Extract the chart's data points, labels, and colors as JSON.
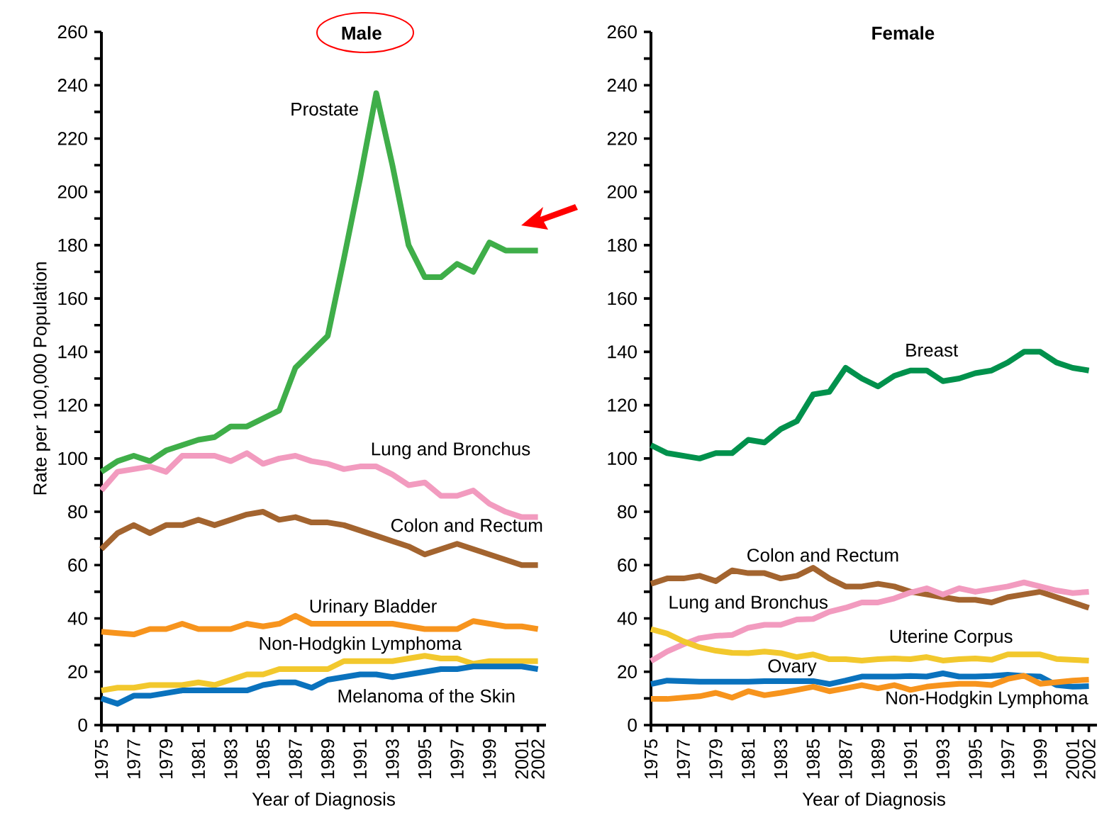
{
  "chart_data": [
    {
      "type": "line",
      "title": "Male",
      "xlabel": "Year of Diagnosis",
      "ylabel": "Rate per 100,000 Population",
      "x": [
        1975,
        1976,
        1977,
        1978,
        1979,
        1980,
        1981,
        1982,
        1983,
        1984,
        1985,
        1986,
        1987,
        1988,
        1989,
        1990,
        1991,
        1992,
        1993,
        1994,
        1995,
        1996,
        1997,
        1998,
        1999,
        2000,
        2001,
        2002
      ],
      "xlim": [
        1975,
        2002.5
      ],
      "xticks": [
        1975,
        {
          "value": 1976,
          "label": null
        },
        1977,
        {
          "value": 1978,
          "label": null
        },
        1979,
        {
          "value": 1980,
          "label": null
        },
        1981,
        {
          "value": 1982,
          "label": null
        },
        1983,
        {
          "value": 1984,
          "label": null
        },
        1985,
        {
          "value": 1986,
          "label": null
        },
        1987,
        {
          "value": 1988,
          "label": null
        },
        1989,
        {
          "value": 1990,
          "label": null
        },
        1991,
        {
          "value": 1992,
          "label": null
        },
        1993,
        {
          "value": 1994,
          "label": null
        },
        1995,
        {
          "value": 1996,
          "label": null
        },
        1997,
        {
          "value": 1998,
          "label": null
        },
        1999,
        {
          "value": 2000,
          "label": null
        },
        2001,
        2002
      ],
      "ylim": [
        0,
        260
      ],
      "yticks": [
        0,
        {
          "value": 10,
          "label": null
        },
        20,
        {
          "value": 30,
          "label": null
        },
        40,
        {
          "value": 50,
          "label": null
        },
        60,
        {
          "value": 70,
          "label": null
        },
        80,
        {
          "value": 90,
          "label": null
        },
        100,
        {
          "value": 110,
          "label": null
        },
        120,
        {
          "value": 130,
          "label": null
        },
        140,
        {
          "value": 150,
          "label": null
        },
        160,
        {
          "value": 170,
          "label": null
        },
        180,
        {
          "value": 190,
          "label": null
        },
        200,
        {
          "value": 210,
          "label": null
        },
        220,
        {
          "value": 230,
          "label": null
        },
        240,
        {
          "value": 250,
          "label": null
        },
        260
      ],
      "series": [
        {
          "name": "Prostate",
          "color": "#3fae49",
          "values": [
            95,
            99,
            101,
            99,
            103,
            105,
            107,
            108,
            112,
            112,
            115,
            118,
            134,
            140,
            146,
            175,
            205,
            237,
            210,
            180,
            168,
            168,
            173,
            170,
            181,
            178,
            178,
            178
          ]
        },
        {
          "name": "Lung and Bronchus",
          "color": "#f29bbf",
          "values": [
            88,
            95,
            96,
            97,
            95,
            101,
            101,
            101,
            99,
            102,
            98,
            100,
            101,
            99,
            98,
            96,
            97,
            97,
            94,
            90,
            91,
            86,
            86,
            88,
            83,
            80,
            78,
            78
          ]
        },
        {
          "name": "Colon and Rectum",
          "color": "#a3642f",
          "values": [
            66,
            72,
            75,
            72,
            75,
            75,
            77,
            75,
            77,
            79,
            80,
            77,
            78,
            76,
            76,
            75,
            73,
            71,
            69,
            67,
            64,
            66,
            68,
            66,
            64,
            62,
            60,
            60
          ]
        },
        {
          "name": "Urinary Bladder",
          "color": "#f7941d",
          "values": [
            35,
            34.5,
            34,
            36,
            36,
            38,
            36,
            36,
            36,
            38,
            37,
            38,
            41,
            38,
            38,
            38,
            38,
            38,
            38,
            37,
            36,
            36,
            36,
            39,
            38,
            37,
            37,
            36
          ]
        },
        {
          "name": "Non-Hodgkin Lymphoma",
          "color": "#f2c82d",
          "values": [
            13,
            14,
            14,
            15,
            15,
            15,
            16,
            15,
            17,
            19,
            19,
            21,
            21,
            21,
            21,
            24,
            24,
            24,
            24,
            25,
            26,
            25,
            25,
            23,
            24,
            24,
            24,
            24
          ]
        },
        {
          "name": "Melanoma of the Skin",
          "color": "#0a72bd",
          "values": [
            10,
            8,
            11,
            11,
            12,
            13,
            13,
            13,
            13,
            13,
            15,
            16,
            16,
            14,
            17,
            18,
            19,
            19,
            18,
            19,
            20,
            21,
            21,
            22,
            22,
            22,
            22,
            21
          ]
        }
      ]
    },
    {
      "type": "line",
      "title": "Female",
      "xlabel": "Year of Diagnosis",
      "x": [
        1975,
        1976,
        1977,
        1978,
        1979,
        1980,
        1981,
        1982,
        1983,
        1984,
        1985,
        1986,
        1987,
        1988,
        1989,
        1990,
        1991,
        1992,
        1993,
        1994,
        1995,
        1996,
        1997,
        1998,
        1999,
        2000,
        2001,
        2002
      ],
      "xlim": [
        1975,
        2002.5
      ],
      "xticks": [
        1975,
        {
          "value": 1976,
          "label": null
        },
        1977,
        {
          "value": 1978,
          "label": null
        },
        1979,
        {
          "value": 1980,
          "label": null
        },
        1981,
        {
          "value": 1982,
          "label": null
        },
        1983,
        {
          "value": 1984,
          "label": null
        },
        1985,
        {
          "value": 1986,
          "label": null
        },
        1987,
        {
          "value": 1988,
          "label": null
        },
        1989,
        {
          "value": 1990,
          "label": null
        },
        1991,
        {
          "value": 1992,
          "label": null
        },
        1993,
        {
          "value": 1994,
          "label": null
        },
        1995,
        {
          "value": 1996,
          "label": null
        },
        1997,
        {
          "value": 1998,
          "label": null
        },
        1999,
        {
          "value": 2000,
          "label": null
        },
        2001,
        2002
      ],
      "ylim": [
        0,
        260
      ],
      "yticks": [
        0,
        {
          "value": 10,
          "label": null
        },
        20,
        {
          "value": 30,
          "label": null
        },
        40,
        {
          "value": 50,
          "label": null
        },
        60,
        {
          "value": 70,
          "label": null
        },
        80,
        {
          "value": 90,
          "label": null
        },
        100,
        {
          "value": 110,
          "label": null
        },
        120,
        {
          "value": 130,
          "label": null
        },
        140,
        {
          "value": 150,
          "label": null
        },
        160,
        {
          "value": 170,
          "label": null
        },
        180,
        {
          "value": 190,
          "label": null
        },
        200,
        {
          "value": 210,
          "label": null
        },
        220,
        {
          "value": 230,
          "label": null
        },
        240,
        {
          "value": 250,
          "label": null
        },
        260
      ],
      "series": [
        {
          "name": "Breast",
          "color": "#00914c",
          "values": [
            105,
            102,
            101,
            100,
            102,
            102,
            107,
            106,
            111,
            114,
            124,
            125,
            134,
            130,
            127,
            131,
            133,
            133,
            129,
            130,
            132,
            133,
            136,
            140,
            140,
            136,
            134,
            133
          ]
        },
        {
          "name": "Colon and Rectum",
          "color": "#a3642f",
          "values": [
            53,
            55,
            55,
            56,
            54,
            58,
            57,
            57,
            55,
            56,
            59,
            55,
            52,
            52,
            53,
            52,
            50,
            49,
            48,
            47,
            47,
            46,
            48,
            49,
            50,
            48,
            46,
            44
          ]
        },
        {
          "name": "Lung and Bronchus",
          "color": "#f29bbf",
          "values": [
            24,
            27.6,
            30.3,
            32.6,
            33.5,
            33.8,
            36.5,
            37.6,
            37.6,
            39.6,
            39.8,
            42.5,
            44,
            46,
            46,
            47.5,
            49.7,
            51.3,
            49,
            51.3,
            50,
            51,
            52,
            53.5,
            52,
            50.5,
            49.5,
            50
          ]
        },
        {
          "name": "Uterine Corpus",
          "color": "#f2c82d",
          "values": [
            36,
            34.3,
            31.4,
            29.2,
            27.9,
            27.1,
            27,
            27.6,
            27,
            25.5,
            26.5,
            24.7,
            24.7,
            24.2,
            24.7,
            25,
            24.7,
            25.5,
            24.2,
            24.7,
            25,
            24.5,
            26.5,
            26.5,
            26.5,
            24.8,
            24.5,
            24.2
          ]
        },
        {
          "name": "Ovary",
          "color": "#0a72bd",
          "values": [
            15.4,
            16.7,
            16.5,
            16.3,
            16.3,
            16.3,
            16.3,
            16.5,
            16.5,
            16.5,
            16.5,
            15.4,
            16.7,
            18.2,
            18.2,
            18.2,
            18.4,
            18.2,
            19.4,
            18.2,
            18.2,
            18.4,
            18.9,
            18.4,
            18.2,
            15,
            14.4,
            14.6
          ]
        },
        {
          "name": "Non-Hodgkin Lymphoma",
          "color": "#f7941d",
          "values": [
            9.8,
            9.8,
            10.3,
            10.8,
            12.1,
            10.3,
            12.7,
            11.2,
            12.1,
            13.2,
            14.4,
            12.7,
            13.8,
            15,
            13.8,
            15,
            13.2,
            14.4,
            15,
            15.5,
            15.5,
            15,
            17.3,
            18.5,
            15.5,
            16.1,
            16.7,
            17
          ]
        }
      ]
    }
  ]
}
